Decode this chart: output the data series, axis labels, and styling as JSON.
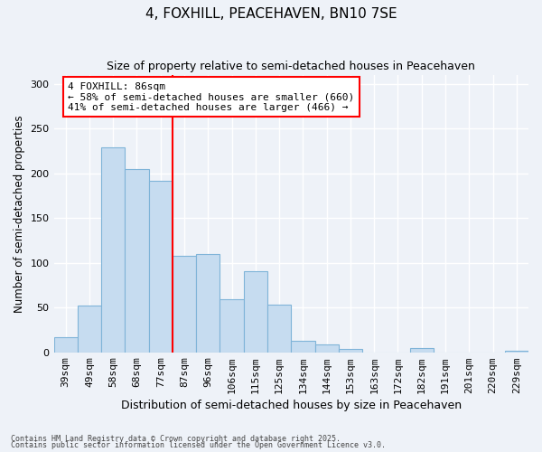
{
  "title": "4, FOXHILL, PEACEHAVEN, BN10 7SE",
  "subtitle": "Size of property relative to semi-detached houses in Peacehaven",
  "xlabel": "Distribution of semi-detached houses by size in Peacehaven",
  "ylabel": "Number of semi-detached properties",
  "footnote1": "Contains HM Land Registry data © Crown copyright and database right 2025.",
  "footnote2": "Contains public sector information licensed under the Open Government Licence v3.0.",
  "bin_labels": [
    "39sqm",
    "49sqm",
    "58sqm",
    "68sqm",
    "77sqm",
    "87sqm",
    "96sqm",
    "106sqm",
    "115sqm",
    "125sqm",
    "134sqm",
    "144sqm",
    "153sqm",
    "163sqm",
    "172sqm",
    "182sqm",
    "191sqm",
    "201sqm",
    "220sqm",
    "229sqm"
  ],
  "bar_values": [
    17,
    52,
    229,
    205,
    192,
    108,
    110,
    59,
    91,
    53,
    13,
    9,
    4,
    0,
    0,
    5,
    0,
    0,
    0,
    2
  ],
  "bar_color": "#c6dcf0",
  "bar_edge_color": "#7fb4d8",
  "vline_x_index": 5,
  "vline_color": "red",
  "annotation_title": "4 FOXHILL: 86sqm",
  "annotation_line1": "← 58% of semi-detached houses are smaller (660)",
  "annotation_line2": "41% of semi-detached houses are larger (466) →",
  "annotation_box_color": "white",
  "annotation_box_edge": "red",
  "ylim": [
    0,
    310
  ],
  "yticks": [
    0,
    50,
    100,
    150,
    200,
    250,
    300
  ],
  "bg_color": "#eef2f8",
  "grid_color": "white",
  "title_fontsize": 11,
  "subtitle_fontsize": 9,
  "ylabel_fontsize": 8.5,
  "xlabel_fontsize": 9,
  "tick_fontsize": 8,
  "annot_fontsize": 8
}
